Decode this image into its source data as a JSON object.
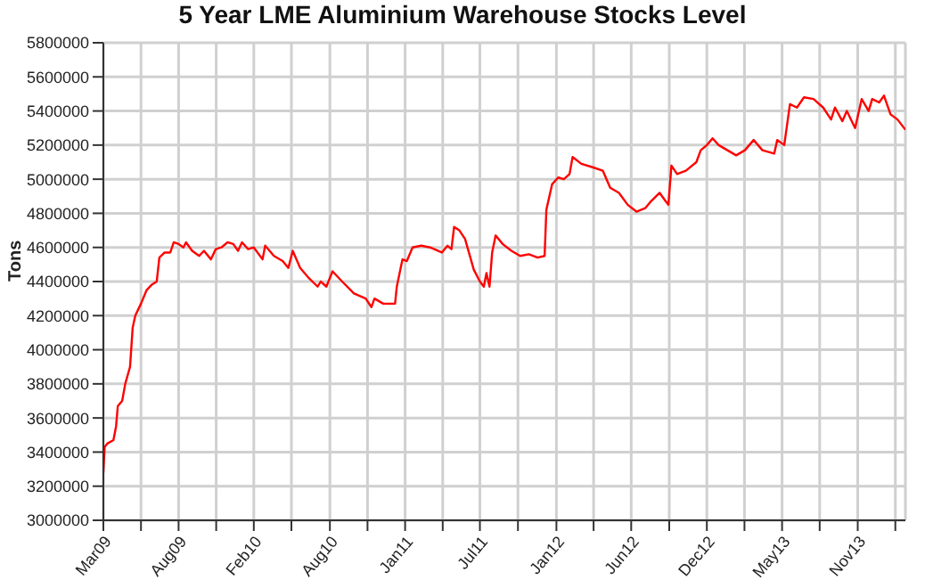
{
  "chart_data": {
    "type": "line",
    "title": "5 Year LME Aluminium Warehouse Stocks Level",
    "ylabel": "Tons",
    "x": [
      "2009-03-01",
      "2009-03-04",
      "2009-03-10",
      "2009-03-24",
      "2009-03-30",
      "2009-04-03",
      "2009-04-13",
      "2009-04-20",
      "2009-05-01",
      "2009-05-07",
      "2009-05-13",
      "2009-05-26",
      "2009-06-08",
      "2009-06-19",
      "2009-07-01",
      "2009-07-07",
      "2009-07-19",
      "2009-08-01",
      "2009-08-09",
      "2009-08-20",
      "2009-08-31",
      "2009-09-06",
      "2009-09-20",
      "2009-10-06",
      "2009-10-17",
      "2009-11-02",
      "2009-11-13",
      "2009-11-26",
      "2009-12-10",
      "2009-12-23",
      "2010-01-03",
      "2010-01-12",
      "2010-01-26",
      "2010-02-08",
      "2010-02-28",
      "2010-03-06",
      "2010-03-26",
      "2010-04-15",
      "2010-04-28",
      "2010-05-08",
      "2010-05-25",
      "2010-06-14",
      "2010-07-04",
      "2010-07-11",
      "2010-07-24",
      "2010-08-07",
      "2010-08-29",
      "2010-09-25",
      "2010-10-22",
      "2010-11-04",
      "2010-11-11",
      "2010-12-01",
      "2010-12-28",
      "2011-01-01",
      "2011-01-14",
      "2011-01-24",
      "2011-02-06",
      "2011-02-26",
      "2011-03-18",
      "2011-04-14",
      "2011-04-27",
      "2011-05-06",
      "2011-05-12",
      "2011-05-24",
      "2011-06-06",
      "2011-06-26",
      "2011-07-10",
      "2011-07-19",
      "2011-07-25",
      "2011-08-01",
      "2011-08-07",
      "2011-08-15",
      "2011-08-31",
      "2011-09-20",
      "2011-10-10",
      "2011-10-30",
      "2011-11-19",
      "2011-12-05",
      "2011-12-09",
      "2011-12-22",
      "2012-01-05",
      "2012-01-18",
      "2012-01-31",
      "2012-02-07",
      "2012-02-27",
      "2012-03-24",
      "2012-04-16",
      "2012-05-03",
      "2012-05-23",
      "2012-06-12",
      "2012-07-02",
      "2012-07-22",
      "2012-08-04",
      "2012-08-24",
      "2012-09-07",
      "2012-09-13",
      "2012-09-20",
      "2012-10-03",
      "2012-10-23",
      "2012-11-16",
      "2012-11-26",
      "2012-12-10",
      "2012-12-23",
      "2013-01-06",
      "2013-01-26",
      "2013-02-15",
      "2013-03-07",
      "2013-03-27",
      "2013-04-16",
      "2013-05-13",
      "2013-05-20",
      "2013-06-05",
      "2013-06-18",
      "2013-07-04",
      "2013-07-20",
      "2013-08-11",
      "2013-09-02",
      "2013-09-20",
      "2013-09-29",
      "2013-10-16",
      "2013-10-26",
      "2013-11-14",
      "2013-11-29",
      "2013-12-15",
      "2013-12-23",
      "2014-01-08",
      "2014-01-19",
      "2014-02-03",
      "2014-02-19",
      "2014-03-09"
    ],
    "series": [
      {
        "color": "#ff0000",
        "values": [
          3280000,
          3430000,
          3450000,
          3470000,
          3550000,
          3670000,
          3700000,
          3800000,
          3900000,
          4130000,
          4200000,
          4270000,
          4350000,
          4380000,
          4400000,
          4540000,
          4570000,
          4570000,
          4630000,
          4620000,
          4600000,
          4630000,
          4580000,
          4550000,
          4580000,
          4530000,
          4590000,
          4600000,
          4630000,
          4620000,
          4580000,
          4630000,
          4590000,
          4600000,
          4530000,
          4610000,
          4550000,
          4520000,
          4480000,
          4580000,
          4480000,
          4420000,
          4370000,
          4400000,
          4370000,
          4460000,
          4400000,
          4330000,
          4300000,
          4250000,
          4300000,
          4270000,
          4270000,
          4370000,
          4530000,
          4520000,
          4600000,
          4610000,
          4600000,
          4570000,
          4610000,
          4590000,
          4720000,
          4700000,
          4650000,
          4470000,
          4400000,
          4370000,
          4450000,
          4370000,
          4570000,
          4670000,
          4620000,
          4580000,
          4550000,
          4560000,
          4540000,
          4550000,
          4820000,
          4970000,
          5010000,
          5000000,
          5030000,
          5130000,
          5090000,
          5070000,
          5050000,
          4950000,
          4920000,
          4850000,
          4810000,
          4830000,
          4870000,
          4920000,
          4870000,
          4850000,
          5080000,
          5030000,
          5050000,
          5100000,
          5170000,
          5200000,
          5240000,
          5200000,
          5170000,
          5140000,
          5170000,
          5230000,
          5170000,
          5150000,
          5230000,
          5200000,
          5440000,
          5420000,
          5480000,
          5470000,
          5420000,
          5350000,
          5420000,
          5340000,
          5400000,
          5300000,
          5470000,
          5400000,
          5470000,
          5450000,
          5490000,
          5380000,
          5350000,
          5290000
        ]
      }
    ],
    "xlim": [
      "2009-03-01",
      "2014-03-09"
    ],
    "xticks": [
      {
        "value": "2009-03-01",
        "label": "Mar09"
      },
      {
        "value": "2009-05-26",
        "label": null
      },
      {
        "value": "2009-08-20",
        "label": "Aug09"
      },
      {
        "value": "2009-11-14",
        "label": null
      },
      {
        "value": "2010-02-08",
        "label": "Feb10"
      },
      {
        "value": "2010-05-05",
        "label": null
      },
      {
        "value": "2010-08-01",
        "label": "Aug10"
      },
      {
        "value": "2010-10-26",
        "label": null
      },
      {
        "value": "2011-01-20",
        "label": "Jan11"
      },
      {
        "value": "2011-04-16",
        "label": null
      },
      {
        "value": "2011-07-10",
        "label": "Jul11"
      },
      {
        "value": "2011-10-05",
        "label": null
      },
      {
        "value": "2012-01-01",
        "label": "Jan12"
      },
      {
        "value": "2012-03-26",
        "label": null
      },
      {
        "value": "2012-06-20",
        "label": "Jun12"
      },
      {
        "value": "2012-09-15",
        "label": null
      },
      {
        "value": "2012-12-10",
        "label": "Dec12"
      },
      {
        "value": "2013-03-06",
        "label": null
      },
      {
        "value": "2013-05-31",
        "label": "May13"
      },
      {
        "value": "2013-08-25",
        "label": null
      },
      {
        "value": "2013-11-20",
        "label": "Nov13"
      },
      {
        "value": "2014-02-14",
        "label": null
      }
    ],
    "ylim": [
      3000000,
      5800000
    ],
    "yticks": [
      3000000,
      3200000,
      3400000,
      3600000,
      3800000,
      4000000,
      4200000,
      4400000,
      4600000,
      4800000,
      5000000,
      5200000,
      5400000,
      5600000,
      5800000
    ],
    "grid": true,
    "legend": false,
    "marker": "none",
    "line_style": "solid"
  }
}
